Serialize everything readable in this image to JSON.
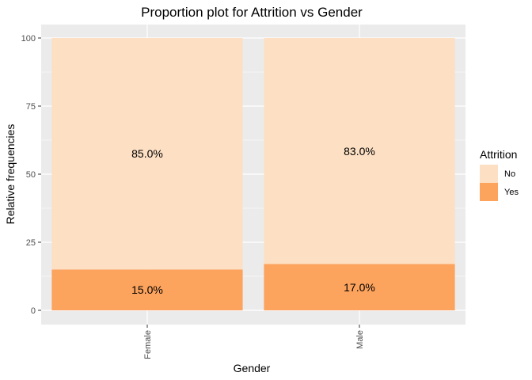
{
  "chart_data": {
    "type": "bar",
    "stacked": true,
    "title": "Proportion plot for Attrition vs Gender",
    "xlabel": "Gender",
    "ylabel": "Relative frequencies",
    "categories": [
      "Female",
      "Male"
    ],
    "series": [
      {
        "name": "Yes",
        "values": [
          15.0,
          17.0
        ],
        "color": "#fca35d",
        "labels": [
          "15.0%",
          "17.0%"
        ]
      },
      {
        "name": "No",
        "values": [
          85.0,
          83.0
        ],
        "color": "#fddfc3",
        "labels": [
          "85.0%",
          "83.0%"
        ]
      }
    ],
    "ylim": [
      0,
      100
    ],
    "yticks": [
      0,
      25,
      50,
      75,
      100
    ],
    "grid": true,
    "panel_background": "#ebebeb",
    "legend": {
      "title": "Attrition",
      "placement": "right",
      "items": [
        {
          "label": "No",
          "color": "#fddfc3"
        },
        {
          "label": "Yes",
          "color": "#fca35d"
        }
      ]
    }
  }
}
